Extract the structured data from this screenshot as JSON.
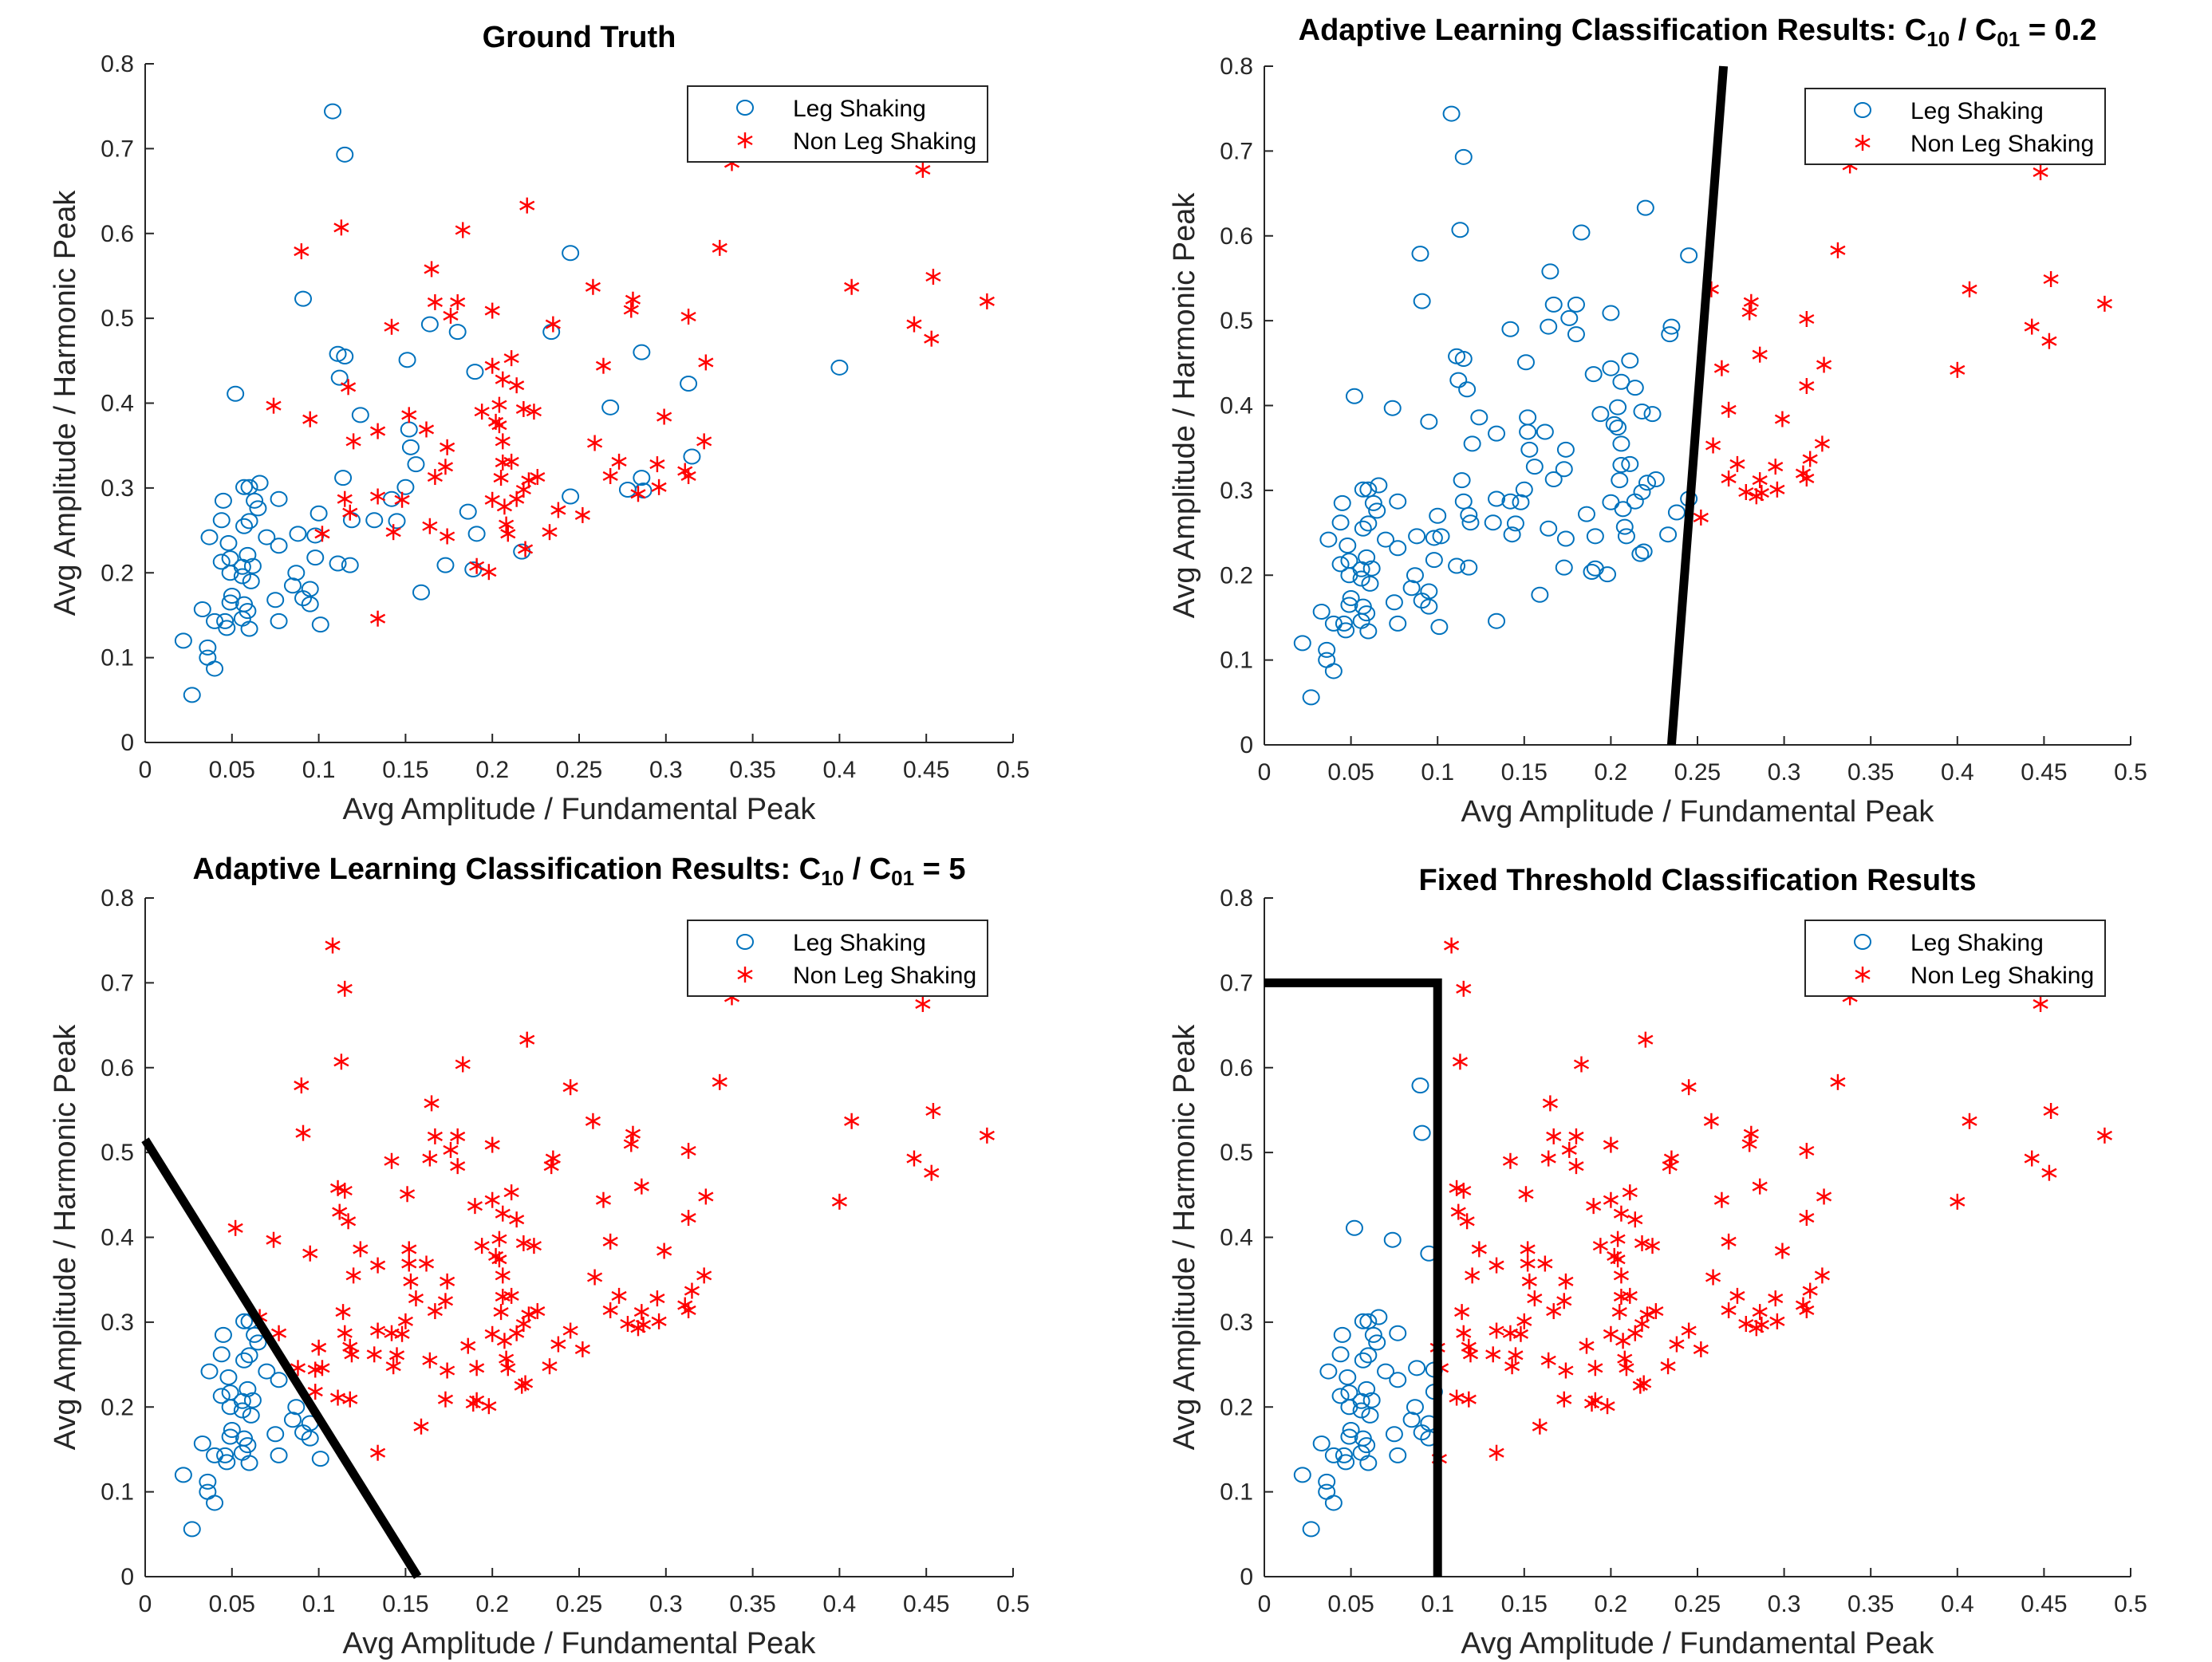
{
  "colors": {
    "leg_shaking": "#0072bd",
    "non_leg_shaking": "#ff0000",
    "boundary": "#000000",
    "axis": "#262626"
  },
  "legend": {
    "placement": "top-right",
    "entries": [
      "Leg Shaking",
      "Non Leg Shaking"
    ]
  },
  "axes": {
    "xlabel": "Avg Amplitude / Fundamental Peak",
    "ylabel": "Avg Amplitude / Harmonic Peak",
    "xlim": [
      0,
      0.5
    ],
    "ylim": [
      0,
      0.8
    ],
    "xticks": [
      "0",
      "0.05",
      "0.1",
      "0.15",
      "0.2",
      "0.25",
      "0.3",
      "0.35",
      "0.4",
      "0.45",
      "0.5"
    ],
    "yticks": [
      "0",
      "0.1",
      "0.2",
      "0.3",
      "0.4",
      "0.5",
      "0.6",
      "0.7",
      "0.8"
    ],
    "grid": false
  },
  "chart_data": [
    {
      "type": "scatter",
      "title_segments": [
        {
          "text": "Ground Truth",
          "sub": false
        }
      ],
      "classification": "ground_truth",
      "boundary": []
    },
    {
      "type": "scatter",
      "title_segments": [
        {
          "text": "Adaptive Learning Classification Results: C",
          "sub": false
        },
        {
          "text": "10",
          "sub": true
        },
        {
          "text": " / C",
          "sub": false
        },
        {
          "text": "01",
          "sub": true
        },
        {
          "text": " = 0.2",
          "sub": false
        }
      ],
      "classification": "linear_boundary",
      "boundary": [
        [
          0.235,
          0
        ],
        [
          0.265,
          0.8
        ]
      ]
    },
    {
      "type": "scatter",
      "title_segments": [
        {
          "text": "Adaptive Learning Classification Results: C",
          "sub": false
        },
        {
          "text": "10",
          "sub": true
        },
        {
          "text": " / C",
          "sub": false
        },
        {
          "text": "01",
          "sub": true
        },
        {
          "text": " = 5",
          "sub": false
        }
      ],
      "classification": "linear_boundary",
      "boundary": [
        [
          0,
          0.515
        ],
        [
          0.157,
          0
        ]
      ]
    },
    {
      "type": "scatter",
      "title_segments": [
        {
          "text": "Fixed Threshold Classification Results",
          "sub": false
        }
      ],
      "classification": "fixed_threshold",
      "boundary": [
        [
          0,
          0.7
        ],
        [
          0.1,
          0.7
        ],
        [
          0.1,
          0
        ]
      ]
    }
  ],
  "points": {
    "leg_shaking": [
      [
        0.108,
        0.744
      ],
      [
        0.115,
        0.693
      ],
      [
        0.091,
        0.523
      ],
      [
        0.052,
        0.411
      ],
      [
        0.245,
        0.577
      ],
      [
        0.164,
        0.493
      ],
      [
        0.18,
        0.484
      ],
      [
        0.234,
        0.484
      ],
      [
        0.151,
        0.451
      ],
      [
        0.111,
        0.458
      ],
      [
        0.115,
        0.455
      ],
      [
        0.112,
        0.43
      ],
      [
        0.19,
        0.437
      ],
      [
        0.286,
        0.46
      ],
      [
        0.4,
        0.442
      ],
      [
        0.313,
        0.423
      ],
      [
        0.124,
        0.386
      ],
      [
        0.268,
        0.395
      ],
      [
        0.152,
        0.369
      ],
      [
        0.153,
        0.348
      ],
      [
        0.156,
        0.328
      ],
      [
        0.315,
        0.337
      ],
      [
        0.114,
        0.312
      ],
      [
        0.286,
        0.312
      ],
      [
        0.278,
        0.298
      ],
      [
        0.287,
        0.297
      ],
      [
        0.245,
        0.29
      ],
      [
        0.15,
        0.301
      ],
      [
        0.142,
        0.287
      ],
      [
        0.145,
        0.261
      ],
      [
        0.132,
        0.262
      ],
      [
        0.119,
        0.262
      ],
      [
        0.1,
        0.27
      ],
      [
        0.186,
        0.272
      ],
      [
        0.191,
        0.246
      ],
      [
        0.217,
        0.225
      ],
      [
        0.173,
        0.209
      ],
      [
        0.189,
        0.204
      ],
      [
        0.159,
        0.177
      ],
      [
        0.118,
        0.209
      ],
      [
        0.111,
        0.211
      ],
      [
        0.098,
        0.218
      ],
      [
        0.098,
        0.244
      ],
      [
        0.088,
        0.246
      ],
      [
        0.077,
        0.287
      ],
      [
        0.066,
        0.306
      ],
      [
        0.057,
        0.301
      ],
      [
        0.06,
        0.301
      ],
      [
        0.045,
        0.285
      ],
      [
        0.063,
        0.285
      ],
      [
        0.065,
        0.276
      ],
      [
        0.044,
        0.262
      ],
      [
        0.06,
        0.261
      ],
      [
        0.057,
        0.255
      ],
      [
        0.037,
        0.242
      ],
      [
        0.07,
        0.242
      ],
      [
        0.048,
        0.235
      ],
      [
        0.077,
        0.232
      ],
      [
        0.059,
        0.221
      ],
      [
        0.049,
        0.217
      ],
      [
        0.044,
        0.213
      ],
      [
        0.062,
        0.208
      ],
      [
        0.056,
        0.207
      ],
      [
        0.049,
        0.2
      ],
      [
        0.056,
        0.196
      ],
      [
        0.061,
        0.19
      ],
      [
        0.087,
        0.2
      ],
      [
        0.085,
        0.185
      ],
      [
        0.095,
        0.181
      ],
      [
        0.091,
        0.17
      ],
      [
        0.095,
        0.163
      ],
      [
        0.075,
        0.168
      ],
      [
        0.05,
        0.173
      ],
      [
        0.049,
        0.165
      ],
      [
        0.057,
        0.163
      ],
      [
        0.059,
        0.155
      ],
      [
        0.056,
        0.146
      ],
      [
        0.077,
        0.143
      ],
      [
        0.101,
        0.139
      ],
      [
        0.046,
        0.143
      ],
      [
        0.047,
        0.135
      ],
      [
        0.06,
        0.134
      ],
      [
        0.04,
        0.143
      ],
      [
        0.033,
        0.157
      ],
      [
        0.036,
        0.112
      ],
      [
        0.036,
        0.1
      ],
      [
        0.04,
        0.087
      ],
      [
        0.022,
        0.12
      ],
      [
        0.027,
        0.056
      ]
    ],
    "non_leg_shaking": [
      [
        0.113,
        0.607
      ],
      [
        0.09,
        0.579
      ],
      [
        0.183,
        0.604
      ],
      [
        0.22,
        0.633
      ],
      [
        0.331,
        0.583
      ],
      [
        0.165,
        0.558
      ],
      [
        0.167,
        0.519
      ],
      [
        0.18,
        0.519
      ],
      [
        0.176,
        0.503
      ],
      [
        0.2,
        0.509
      ],
      [
        0.142,
        0.49
      ],
      [
        0.235,
        0.493
      ],
      [
        0.258,
        0.537
      ],
      [
        0.281,
        0.522
      ],
      [
        0.28,
        0.51
      ],
      [
        0.313,
        0.502
      ],
      [
        0.407,
        0.537
      ],
      [
        0.454,
        0.549
      ],
      [
        0.485,
        0.52
      ],
      [
        0.443,
        0.493
      ],
      [
        0.453,
        0.476
      ],
      [
        0.448,
        0.675
      ],
      [
        0.338,
        0.683
      ],
      [
        0.2,
        0.444
      ],
      [
        0.211,
        0.453
      ],
      [
        0.206,
        0.428
      ],
      [
        0.214,
        0.421
      ],
      [
        0.264,
        0.444
      ],
      [
        0.323,
        0.448
      ],
      [
        0.117,
        0.419
      ],
      [
        0.074,
        0.397
      ],
      [
        0.095,
        0.381
      ],
      [
        0.152,
        0.386
      ],
      [
        0.12,
        0.355
      ],
      [
        0.134,
        0.367
      ],
      [
        0.162,
        0.369
      ],
      [
        0.174,
        0.348
      ],
      [
        0.173,
        0.325
      ],
      [
        0.167,
        0.313
      ],
      [
        0.194,
        0.39
      ],
      [
        0.204,
        0.398
      ],
      [
        0.202,
        0.378
      ],
      [
        0.204,
        0.374
      ],
      [
        0.206,
        0.355
      ],
      [
        0.218,
        0.393
      ],
      [
        0.224,
        0.39
      ],
      [
        0.299,
        0.384
      ],
      [
        0.259,
        0.353
      ],
      [
        0.322,
        0.355
      ],
      [
        0.205,
        0.312
      ],
      [
        0.206,
        0.33
      ],
      [
        0.211,
        0.331
      ],
      [
        0.221,
        0.309
      ],
      [
        0.226,
        0.313
      ],
      [
        0.218,
        0.298
      ],
      [
        0.214,
        0.287
      ],
      [
        0.268,
        0.314
      ],
      [
        0.273,
        0.331
      ],
      [
        0.295,
        0.328
      ],
      [
        0.311,
        0.32
      ],
      [
        0.313,
        0.314
      ],
      [
        0.296,
        0.301
      ],
      [
        0.284,
        0.293
      ],
      [
        0.115,
        0.287
      ],
      [
        0.118,
        0.271
      ],
      [
        0.134,
        0.29
      ],
      [
        0.148,
        0.286
      ],
      [
        0.2,
        0.286
      ],
      [
        0.207,
        0.278
      ],
      [
        0.208,
        0.257
      ],
      [
        0.209,
        0.246
      ],
      [
        0.164,
        0.255
      ],
      [
        0.143,
        0.248
      ],
      [
        0.174,
        0.243
      ],
      [
        0.102,
        0.246
      ],
      [
        0.238,
        0.274
      ],
      [
        0.252,
        0.268
      ],
      [
        0.233,
        0.248
      ],
      [
        0.219,
        0.228
      ],
      [
        0.191,
        0.208
      ],
      [
        0.198,
        0.201
      ],
      [
        0.134,
        0.146
      ]
    ]
  }
}
